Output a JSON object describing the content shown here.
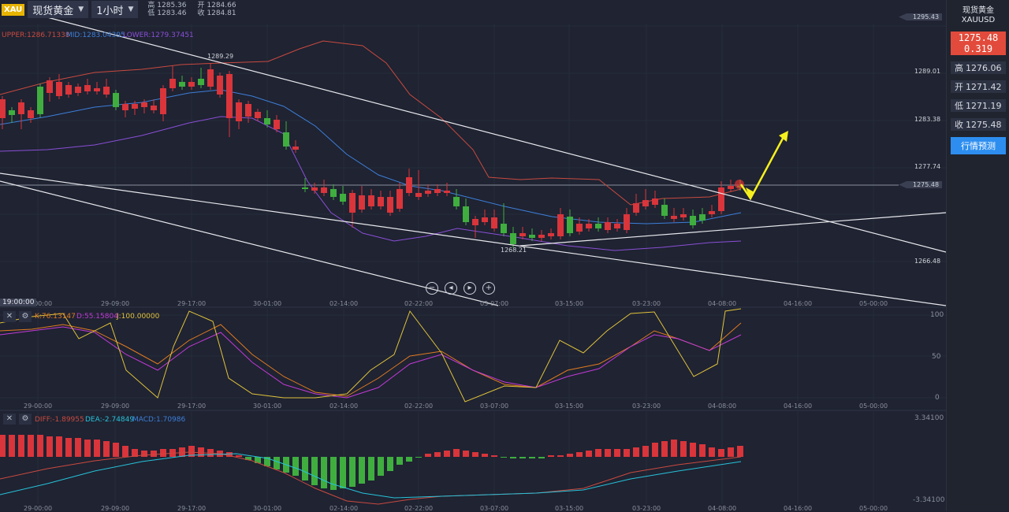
{
  "toolbar": {
    "symbol_badge": "XAU",
    "symbol_name": "现货黄金",
    "timeframe": "1小时",
    "high": "高 1285.36",
    "low": "低 1283.46",
    "open": "开 1284.66",
    "close": "收 1284.81"
  },
  "boll": {
    "upper": "UPPER:1286.71338",
    "mid": "MID:1283.04395",
    "lower": "LOWER:1279.37451",
    "upper_color": "#c94a3f",
    "mid_color": "#3d7fd9",
    "lower_color": "#8a4fd6"
  },
  "kdj": {
    "k": "K:76.13147",
    "d": "D:55.15804",
    "j": "J:100.00000",
    "k_color": "#e07a1f",
    "d_color": "#c23ad6",
    "j_color": "#e0c23a"
  },
  "macd": {
    "diff": "DIFF:-1.89955",
    "dea": "DEA:-2.74849",
    "macd": "MACD:1.70986",
    "diff_color": "#c94a3f",
    "dea_color": "#27c2d9",
    "macd_color": "#3d7fd9"
  },
  "price_axis": [
    "1295.43",
    "1289.01",
    "1283.38",
    "1277.74",
    "1275.48",
    "1266.48"
  ],
  "kdj_axis": [
    "100",
    "50",
    "0"
  ],
  "macd_axis": [
    "3.34100",
    "-3.34100"
  ],
  "time_axis": [
    "29-00:00",
    "29-09:00",
    "29-17:00",
    "30-01:00",
    "02-14:00",
    "02-22:00",
    "03-07:00",
    "03-15:00",
    "03-23:00",
    "04-08:00",
    "04-16:00",
    "05-00:00"
  ],
  "crosshair_time": "19:00:00",
  "annotations": {
    "high_mark": "1289.29",
    "low_mark": "1268.21"
  },
  "sidebar": {
    "name": "现货黄金",
    "code": "XAUUSD",
    "price": "1275.48",
    "change": "0.319",
    "high_label": "高",
    "high_value": "1276.06",
    "open_label": "开",
    "open_value": "1271.42",
    "low_label": "低",
    "low_value": "1271.19",
    "close_label": "收",
    "close_value": "1275.48",
    "forecast_button": "行情预测"
  },
  "colors": {
    "up": "#d9353b",
    "down": "#3fae3f",
    "accent": "#2d8ef0",
    "arrow": "#f5f01e"
  },
  "chart_data": {
    "type": "candlestick",
    "symbol": "XAUUSD",
    "timeframe": "1小时",
    "x_ticks": [
      "29-00:00",
      "29-09:00",
      "29-17:00",
      "30-01:00",
      "02-14:00",
      "02-22:00",
      "03-07:00",
      "03-15:00",
      "03-23:00",
      "04-08:00"
    ],
    "current_price": 1275.48,
    "period_high": 1289.29,
    "period_low": 1268.21,
    "price_ylim": [
      1264,
      1296
    ]
  }
}
